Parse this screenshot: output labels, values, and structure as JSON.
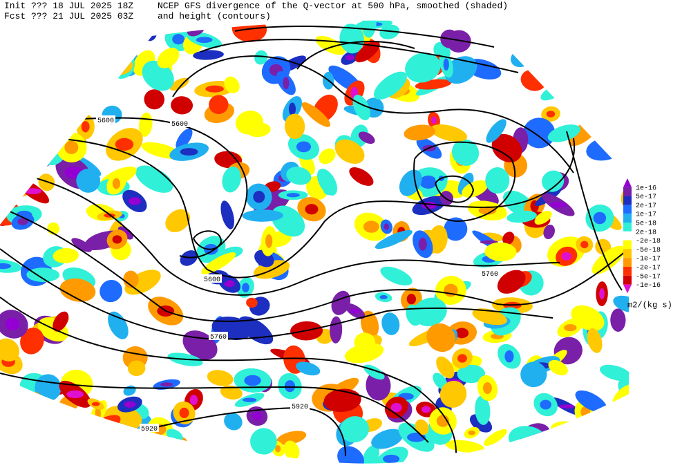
{
  "header": {
    "init": "Init  ??? 18 JUL 2025 18Z",
    "fcst": "Fcst ??? 21 JUL 2025 03Z",
    "title": "NCEP GFS divergence of the Q-vector at 500 hPa, smoothed (shaded)",
    "subtitle": "and height (contours)"
  },
  "contour_labels": [
    "5600",
    "5600",
    "5600",
    "5760",
    "5760",
    "5920",
    "5920"
  ],
  "colorbar": {
    "labels": [
      "1e-16",
      "5e-17",
      "2e-17",
      "1e-17",
      "5e-18",
      "2e-18",
      "-2e-18",
      "-5e-18",
      "-1e-17",
      "-2e-17",
      "-5e-17",
      "-1e-16"
    ],
    "colors": [
      "#9400d3",
      "#7a1fa8",
      "#1c2fc0",
      "#1e6bff",
      "#20b0f0",
      "#30f0d8",
      "#ffffff",
      "#ffff00",
      "#ffc800",
      "#ff9a00",
      "#ff3000",
      "#d00000",
      "#e010d0"
    ],
    "units": "m2/(kg s)"
  }
}
